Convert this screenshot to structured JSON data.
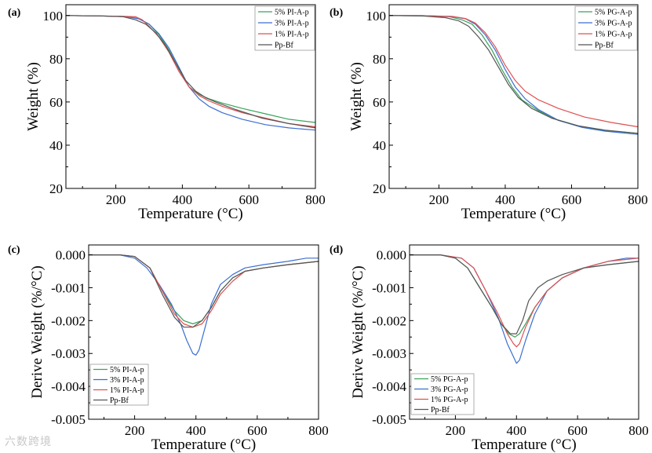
{
  "watermark": "六数跨境",
  "chart_data": [
    {
      "type": "line",
      "panel_label": "(a)",
      "xlabel": "Temperature (°C)",
      "ylabel": "Weight (%)",
      "xlim": [
        50,
        800
      ],
      "ylim": [
        20,
        105
      ],
      "xticks": [
        200,
        400,
        600,
        800
      ],
      "yticks": [
        20,
        40,
        60,
        80,
        100
      ],
      "ytick_labels": [
        "20",
        "40",
        "60",
        "80",
        "100"
      ],
      "legend_position": "top-right",
      "series": [
        {
          "name": "5% PI-A-p",
          "color": "#3aa35c",
          "x": [
            50,
            150,
            230,
            270,
            300,
            330,
            360,
            390,
            420,
            450,
            480,
            520,
            580,
            650,
            720,
            800
          ],
          "y": [
            100,
            99.8,
            99.5,
            98.6,
            96,
            91,
            84,
            75,
            67,
            63.5,
            61.5,
            59.5,
            57,
            54.5,
            52,
            50.5
          ]
        },
        {
          "name": "3% PI-A-p",
          "color": "#3b6fd0",
          "x": [
            50,
            150,
            230,
            270,
            300,
            330,
            360,
            390,
            420,
            450,
            480,
            520,
            580,
            650,
            720,
            800
          ],
          "y": [
            100,
            99.8,
            99.5,
            98.4,
            96,
            91.5,
            85,
            76,
            67,
            61.5,
            58,
            55,
            52,
            49.5,
            48,
            47
          ]
        },
        {
          "name": "1% PI-A-p",
          "color": "#e05050",
          "x": [
            50,
            150,
            230,
            260,
            280,
            300,
            330,
            360,
            390,
            420,
            450,
            480,
            520,
            580,
            650,
            720,
            800
          ],
          "y": [
            100,
            99.8,
            99.6,
            99.4,
            98,
            95,
            90,
            83,
            74,
            67,
            63,
            60.5,
            58,
            55,
            52.5,
            50,
            48.5
          ]
        },
        {
          "name": "Pp-Bf",
          "color": "#555555",
          "x": [
            50,
            150,
            220,
            260,
            290,
            320,
            350,
            380,
            410,
            440,
            470,
            500,
            560,
            640,
            720,
            800
          ],
          "y": [
            100,
            99.8,
            99.5,
            98,
            96,
            92,
            86,
            78,
            70,
            65,
            62,
            60,
            56.5,
            52.5,
            50,
            48
          ]
        }
      ]
    },
    {
      "type": "line",
      "panel_label": "(b)",
      "xlabel": "Temperature (°C)",
      "ylabel": "Weight (%)",
      "xlim": [
        50,
        800
      ],
      "ylim": [
        20,
        105
      ],
      "xticks": [
        200,
        400,
        600,
        800
      ],
      "yticks": [
        20,
        40,
        60,
        80,
        100
      ],
      "ytick_labels": [
        "20",
        "40",
        "60",
        "80",
        "100"
      ],
      "legend_position": "top-right",
      "series": [
        {
          "name": "5% PG-A-p",
          "color": "#3aa35c",
          "x": [
            50,
            150,
            230,
            270,
            300,
            330,
            360,
            390,
            420,
            450,
            500,
            560,
            630,
            700,
            800
          ],
          "y": [
            100,
            99.9,
            99.5,
            98,
            96,
            91,
            84,
            75,
            67,
            61,
            56,
            51.5,
            48.5,
            46.8,
            45.5
          ]
        },
        {
          "name": "3% PG-A-p",
          "color": "#3b6fd0",
          "x": [
            50,
            150,
            240,
            280,
            310,
            340,
            370,
            400,
            430,
            460,
            500,
            560,
            630,
            700,
            800
          ],
          "y": [
            100,
            99.9,
            99.5,
            98.5,
            96,
            91,
            84,
            75,
            67,
            61.5,
            56.5,
            51.5,
            48.3,
            46.5,
            45
          ]
        },
        {
          "name": "1% PG-A-p",
          "color": "#e05050",
          "x": [
            50,
            150,
            240,
            280,
            310,
            340,
            370,
            400,
            430,
            460,
            500,
            560,
            640,
            720,
            800
          ],
          "y": [
            100,
            99.9,
            99.6,
            98.6,
            96.5,
            92,
            85.5,
            77,
            70,
            65,
            61,
            57,
            53,
            50.5,
            48.5
          ]
        },
        {
          "name": "Pp-Bf",
          "color": "#555555",
          "x": [
            50,
            150,
            220,
            260,
            290,
            320,
            350,
            380,
            410,
            440,
            480,
            540,
            620,
            700,
            800
          ],
          "y": [
            100,
            99.8,
            99,
            97.5,
            95,
            90,
            84,
            76,
            68,
            62,
            57,
            52.5,
            49,
            47,
            45.5
          ]
        }
      ]
    },
    {
      "type": "line",
      "panel_label": "(c)",
      "xlabel": "Temperature (°C)",
      "ylabel": "Derive Weight (%/°C)",
      "xlim": [
        50,
        800
      ],
      "ylim": [
        -0.005,
        0.0003
      ],
      "xticks": [
        200,
        400,
        600,
        800
      ],
      "yticks": [
        0,
        -0.001,
        -0.002,
        -0.003,
        -0.004,
        -0.005
      ],
      "ytick_labels": [
        "0.000",
        "-0.001",
        "-0.002",
        "-0.003",
        "-0.004",
        "-0.005"
      ],
      "legend_position": "bottom-left",
      "series": [
        {
          "name": "5% PI-A-p",
          "color": "#3aa35c",
          "x": [
            50,
            150,
            200,
            250,
            290,
            330,
            360,
            390,
            420,
            450,
            480,
            520,
            560,
            620,
            700,
            800
          ],
          "y": [
            0,
            0,
            -5e-05,
            -0.0004,
            -0.0011,
            -0.0017,
            -0.002,
            -0.0021,
            -0.002,
            -0.0016,
            -0.0011,
            -0.0007,
            -0.0005,
            -0.0004,
            -0.0003,
            -0.0002
          ]
        },
        {
          "name": "3% PI-A-p",
          "color": "#3b6fd0",
          "x": [
            50,
            150,
            200,
            240,
            280,
            320,
            350,
            370,
            390,
            400,
            410,
            430,
            450,
            480,
            520,
            560,
            620,
            700,
            760,
            800
          ],
          "y": [
            0,
            0,
            -0.0001,
            -0.0004,
            -0.0009,
            -0.0015,
            -0.0021,
            -0.0026,
            -0.003,
            -0.00305,
            -0.0029,
            -0.0022,
            -0.0015,
            -0.0009,
            -0.0006,
            -0.0004,
            -0.0003,
            -0.0002,
            -0.0001,
            -0.0001
          ]
        },
        {
          "name": "1% PI-A-p",
          "color": "#e05050",
          "x": [
            50,
            150,
            200,
            250,
            290,
            330,
            360,
            390,
            420,
            450,
            480,
            520,
            560,
            620,
            700,
            800
          ],
          "y": [
            0,
            0,
            -5e-05,
            -0.0004,
            -0.0011,
            -0.0018,
            -0.0021,
            -0.0022,
            -0.0021,
            -0.0017,
            -0.0012,
            -0.0008,
            -0.0005,
            -0.0004,
            -0.0003,
            -0.0002
          ]
        },
        {
          "name": "Pp-Bf",
          "color": "#555555",
          "x": [
            50,
            150,
            200,
            250,
            290,
            330,
            360,
            390,
            420,
            450,
            480,
            520,
            560,
            620,
            700,
            800
          ],
          "y": [
            0,
            0,
            -5e-05,
            -0.0004,
            -0.0012,
            -0.0019,
            -0.0022,
            -0.0022,
            -0.002,
            -0.0016,
            -0.0011,
            -0.0007,
            -0.0005,
            -0.0004,
            -0.0003,
            -0.0002
          ]
        }
      ]
    },
    {
      "type": "line",
      "panel_label": "(d)",
      "xlabel": "Temperature (°C)",
      "ylabel": "Derive Weight (%/°C)",
      "xlim": [
        50,
        800
      ],
      "ylim": [
        -0.005,
        0.0003
      ],
      "xticks": [
        200,
        400,
        600,
        800
      ],
      "yticks": [
        0,
        -0.001,
        -0.002,
        -0.003,
        -0.004,
        -0.005
      ],
      "ytick_labels": [
        "0.000",
        "-0.001",
        "-0.002",
        "-0.003",
        "-0.004",
        "-0.005"
      ],
      "legend_position": "bottom-left",
      "series": [
        {
          "name": "5% PG-A-p",
          "color": "#3aa35c",
          "x": [
            50,
            150,
            200,
            240,
            280,
            320,
            350,
            375,
            395,
            410,
            430,
            460,
            500,
            550,
            620,
            700,
            800
          ],
          "y": [
            0,
            0,
            -0.0001,
            -0.0004,
            -0.001,
            -0.0016,
            -0.0021,
            -0.0024,
            -0.0025,
            -0.0024,
            -0.0021,
            -0.0016,
            -0.0011,
            -0.0007,
            -0.0004,
            -0.0003,
            -0.0002
          ]
        },
        {
          "name": "3% PG-A-p",
          "color": "#3b6fd0",
          "x": [
            50,
            150,
            220,
            260,
            300,
            340,
            370,
            390,
            400,
            410,
            430,
            460,
            500,
            550,
            620,
            700,
            760,
            800
          ],
          "y": [
            0,
            0,
            -0.0001,
            -0.0004,
            -0.0011,
            -0.0019,
            -0.0027,
            -0.0031,
            -0.0033,
            -0.0032,
            -0.0026,
            -0.0018,
            -0.0011,
            -0.0007,
            -0.0004,
            -0.0002,
            -0.0001,
            -0.0001
          ]
        },
        {
          "name": "1% PG-A-p",
          "color": "#e05050",
          "x": [
            50,
            150,
            220,
            260,
            300,
            340,
            370,
            390,
            400,
            410,
            430,
            460,
            500,
            550,
            620,
            700,
            800
          ],
          "y": [
            0,
            0,
            -0.0001,
            -0.0004,
            -0.0011,
            -0.0018,
            -0.0024,
            -0.0027,
            -0.0028,
            -0.0027,
            -0.0022,
            -0.0016,
            -0.0011,
            -0.0007,
            -0.0004,
            -0.0002,
            -0.0001
          ]
        },
        {
          "name": "Pp-Bf",
          "color": "#555555",
          "x": [
            50,
            150,
            200,
            240,
            280,
            320,
            350,
            380,
            400,
            420,
            440,
            470,
            500,
            550,
            620,
            700,
            800
          ],
          "y": [
            0,
            0,
            -0.0001,
            -0.0004,
            -0.001,
            -0.0016,
            -0.0021,
            -0.0024,
            -0.0024,
            -0.002,
            -0.0014,
            -0.001,
            -0.0008,
            -0.0006,
            -0.0004,
            -0.0003,
            -0.0002
          ]
        }
      ]
    }
  ]
}
